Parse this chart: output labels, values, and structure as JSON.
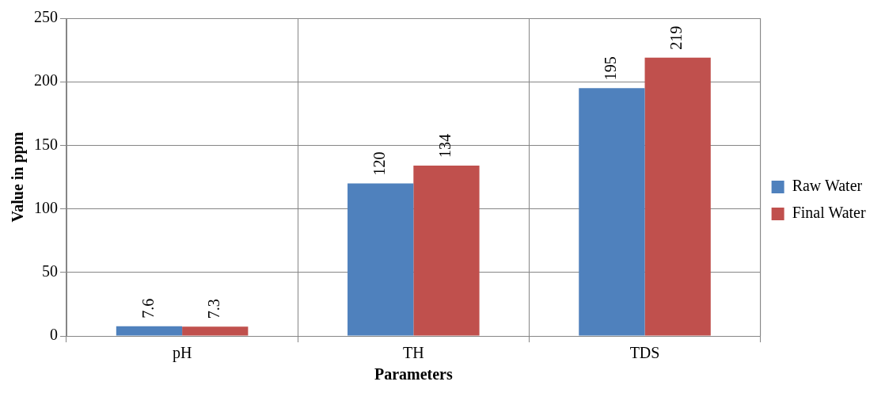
{
  "chart_data": {
    "type": "bar",
    "xlabel": "Parameters",
    "ylabel": "Value in ppm",
    "categories": [
      "pH",
      "TH",
      "TDS"
    ],
    "series": [
      {
        "name": "Raw Water",
        "color": "#4f81bd",
        "values": [
          7.6,
          120,
          195
        ]
      },
      {
        "name": "Final Water",
        "color": "#c0504d",
        "values": [
          7.3,
          134,
          219
        ]
      }
    ],
    "ylim": [
      0,
      250
    ],
    "yticks": [
      0,
      50,
      100,
      150,
      200,
      250
    ],
    "grid": true,
    "legend": "right",
    "data_labels": true
  }
}
